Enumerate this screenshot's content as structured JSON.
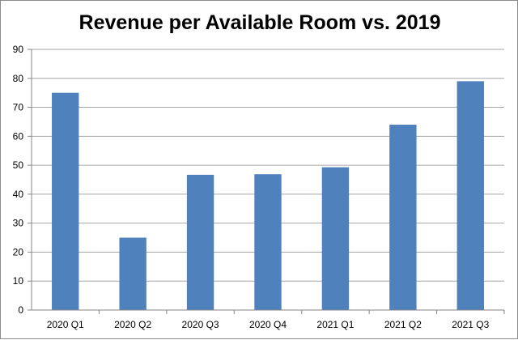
{
  "chart_data": {
    "type": "bar",
    "title": "Revenue per Available Room vs. 2019",
    "xlabel": "",
    "ylabel": "",
    "categories": [
      "2020 Q1",
      "2020 Q2",
      "2020 Q3",
      "2020 Q4",
      "2021 Q1",
      "2021 Q2",
      "2021 Q3"
    ],
    "values": [
      75,
      25,
      46.7,
      46.9,
      49.3,
      64,
      79
    ],
    "ylim": [
      0,
      90
    ],
    "yticks": [
      0,
      10,
      20,
      30,
      40,
      50,
      60,
      70,
      80,
      90
    ],
    "grid": true,
    "legend": "none",
    "colors": {
      "bar": "#4f81bd",
      "grid": "#a6a6a6",
      "axis": "#868686"
    }
  }
}
